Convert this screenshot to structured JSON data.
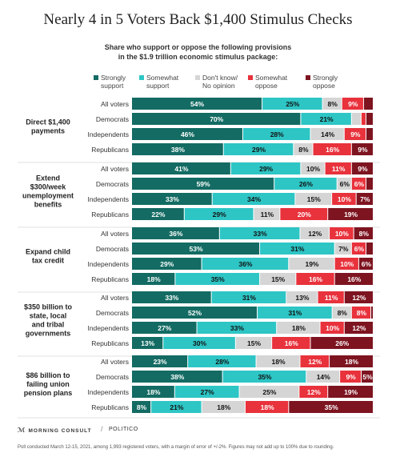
{
  "chart_data": {
    "type": "bar",
    "orientation": "horizontal",
    "stacked": true,
    "title": "Nearly 4 in 5 Voters Back $1,400 Stimulus Checks",
    "subtitle_lines": [
      "Share who support or oppose the following provisions",
      "in the $1.9 trillion economic stimulus package:"
    ],
    "xlabel": "",
    "ylabel": "",
    "xlim": [
      0,
      100
    ],
    "legend_position": "top",
    "series": [
      {
        "name": "Strongly support",
        "label_lines": [
          "Strongly",
          "support"
        ],
        "color": "#136b63"
      },
      {
        "name": "Somewhat support",
        "label_lines": [
          "Somewhat",
          "support"
        ],
        "color": "#2ec5c5"
      },
      {
        "name": "Don't know/ No opinion",
        "label_lines": [
          "Don't know/",
          "No opinion"
        ],
        "color": "#d5d5d5"
      },
      {
        "name": "Somewhat oppose",
        "label_lines": [
          "Somewhat",
          "oppose"
        ],
        "color": "#e8323c"
      },
      {
        "name": "Strongly oppose",
        "label_lines": [
          "Strongly",
          "oppose"
        ],
        "color": "#7d1420"
      }
    ],
    "groups": [
      {
        "name": "Direct $1,400 payments",
        "label_lines": [
          "Direct $1,400",
          "payments"
        ],
        "rows": [
          {
            "label": "All voters",
            "values": [
              54,
              25,
              8,
              9,
              4
            ],
            "labels": [
              "54%",
              "25%",
              "8%",
              "9%",
              ""
            ]
          },
          {
            "label": "Democrats",
            "values": [
              70,
              21,
              4,
              2,
              3
            ],
            "labels": [
              "70%",
              "21%",
              "",
              "",
              ""
            ]
          },
          {
            "label": "Independents",
            "values": [
              46,
              28,
              14,
              9,
              3
            ],
            "labels": [
              "46%",
              "28%",
              "14%",
              "9%",
              ""
            ]
          },
          {
            "label": "Republicans",
            "values": [
              38,
              29,
              8,
              16,
              9
            ],
            "labels": [
              "38%",
              "29%",
              "8%",
              "16%",
              "9%"
            ]
          }
        ]
      },
      {
        "name": "Extend $300/week unemployment benefits",
        "label_lines": [
          "Extend",
          "$300/week",
          "unemployment",
          "benefits"
        ],
        "rows": [
          {
            "label": "All voters",
            "values": [
              41,
              29,
              10,
              11,
              9
            ],
            "labels": [
              "41%",
              "29%",
              "10%",
              "11%",
              "9%"
            ]
          },
          {
            "label": "Democrats",
            "values": [
              59,
              26,
              6,
              6,
              3
            ],
            "labels": [
              "59%",
              "26%",
              "6%",
              "6%",
              ""
            ]
          },
          {
            "label": "Independents",
            "values": [
              33,
              34,
              15,
              10,
              7
            ],
            "labels": [
              "33%",
              "34%",
              "15%",
              "10%",
              "7%"
            ]
          },
          {
            "label": "Republicans",
            "values": [
              22,
              29,
              11,
              20,
              19
            ],
            "labels": [
              "22%",
              "29%",
              "11%",
              "20%",
              "19%"
            ]
          }
        ]
      },
      {
        "name": "Expand child tax credit",
        "label_lines": [
          "Expand child",
          "tax credit"
        ],
        "rows": [
          {
            "label": "All voters",
            "values": [
              36,
              33,
              12,
              10,
              8
            ],
            "labels": [
              "36%",
              "33%",
              "12%",
              "10%",
              "8%"
            ]
          },
          {
            "label": "Democrats",
            "values": [
              53,
              31,
              7,
              6,
              3
            ],
            "labels": [
              "53%",
              "31%",
              "7%",
              "6%",
              ""
            ]
          },
          {
            "label": "Independents",
            "values": [
              29,
              36,
              19,
              10,
              6
            ],
            "labels": [
              "29%",
              "36%",
              "19%",
              "10%",
              "6%"
            ]
          },
          {
            "label": "Republicans",
            "values": [
              18,
              35,
              15,
              16,
              16
            ],
            "labels": [
              "18%",
              "35%",
              "15%",
              "16%",
              "16%"
            ]
          }
        ]
      },
      {
        "name": "$350 billion to state, local and tribal governments",
        "label_lines": [
          "$350 billion to",
          "state, local",
          "and tribal",
          "governments"
        ],
        "rows": [
          {
            "label": "All voters",
            "values": [
              33,
              31,
              13,
              11,
              12
            ],
            "labels": [
              "33%",
              "31%",
              "13%",
              "11%",
              "12%"
            ]
          },
          {
            "label": "Democrats",
            "values": [
              52,
              31,
              8,
              8,
              1
            ],
            "labels": [
              "52%",
              "31%",
              "8%",
              "8%",
              ""
            ]
          },
          {
            "label": "Independents",
            "values": [
              27,
              33,
              18,
              10,
              12
            ],
            "labels": [
              "27%",
              "33%",
              "18%",
              "10%",
              "12%"
            ]
          },
          {
            "label": "Republicans",
            "values": [
              13,
              30,
              15,
              16,
              26
            ],
            "labels": [
              "13%",
              "30%",
              "15%",
              "16%",
              "26%"
            ]
          }
        ]
      },
      {
        "name": "$86 billion to failing union pension plans",
        "label_lines": [
          "$86 billion to",
          "failing union",
          "pension plans"
        ],
        "rows": [
          {
            "label": "All voters",
            "values": [
              23,
              28,
              18,
              12,
              18
            ],
            "labels": [
              "23%",
              "28%",
              "18%",
              "12%",
              "18%"
            ]
          },
          {
            "label": "Democrats",
            "values": [
              38,
              35,
              14,
              9,
              5
            ],
            "labels": [
              "38%",
              "35%",
              "14%",
              "9%",
              "5%"
            ]
          },
          {
            "label": "Independents",
            "values": [
              18,
              27,
              25,
              12,
              19
            ],
            "labels": [
              "18%",
              "27%",
              "25%",
              "12%",
              "19%"
            ]
          },
          {
            "label": "Republicans",
            "values": [
              8,
              21,
              18,
              18,
              35
            ],
            "labels": [
              "8%",
              "21%",
              "18%",
              "18%",
              "35%"
            ]
          }
        ]
      }
    ]
  },
  "footer": {
    "brand_left": "MORNING CONSULT",
    "separator": "/",
    "brand_right": "POLITICO",
    "note": "Poll conducted March 12-15, 2021, among 1,993 registered voters, with a margin of error of +/-2%. Figures may not add up to 100% due to rounding."
  }
}
